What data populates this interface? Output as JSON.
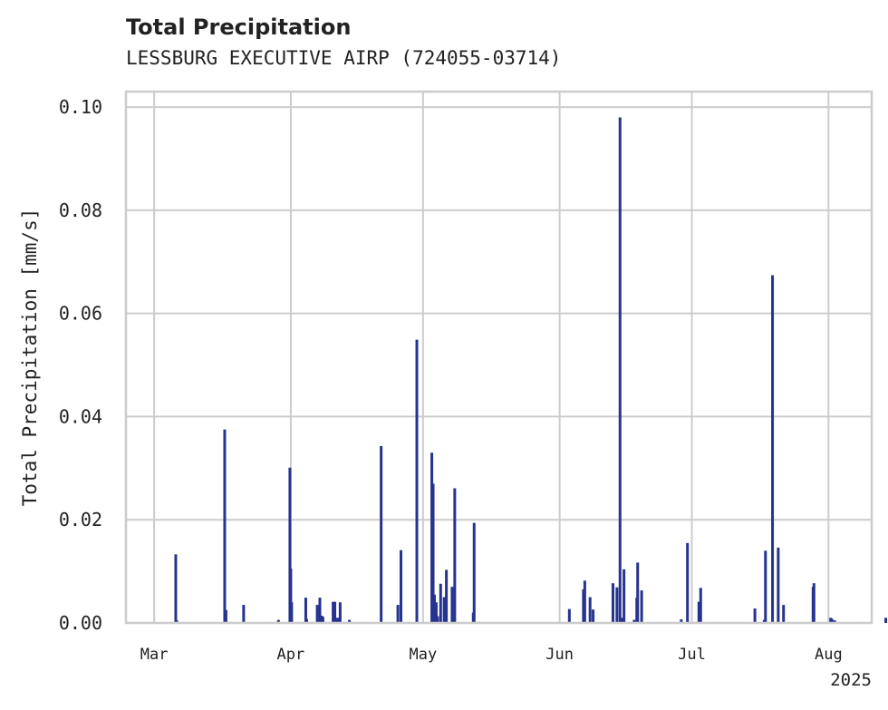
{
  "chart_data": {
    "type": "bar",
    "title": "Total Precipitation",
    "subtitle": "LESSBURG EXECUTIVE AIRP (724055-03714)",
    "xlabel": "",
    "ylabel": "Total Precipitation [mm/s]",
    "xlim": [
      -6.4,
      162.8
    ],
    "ylim": [
      0,
      0.103
    ],
    "yticks": [
      0.0,
      0.02,
      0.04,
      0.06,
      0.08,
      0.1
    ],
    "ytick_labels": [
      "0.00",
      "0.02",
      "0.04",
      "0.06",
      "0.08",
      "0.10"
    ],
    "xticks": [
      {
        "day": 0,
        "label": "Mar"
      },
      {
        "day": 31,
        "label": "Apr"
      },
      {
        "day": 61,
        "label": "May"
      },
      {
        "day": 92,
        "label": "Jun"
      },
      {
        "day": 122,
        "label": "Jul"
      },
      {
        "day": 153,
        "label": "Aug"
      }
    ],
    "year_label": "2025",
    "grid": true,
    "bar_color": "#26338f",
    "x_unit": "days since Mar 1 2025",
    "x": [
      4.9,
      5.1,
      16.0,
      16.3,
      20.3,
      28.2,
      30.8,
      31.0,
      31.2,
      34.4,
      34.6,
      37.0,
      37.6,
      38.0,
      38.3,
      40.6,
      41.0,
      41.5,
      42.0,
      42.2,
      44.3,
      51.5,
      55.3,
      56.0,
      59.6,
      63.0,
      63.3,
      63.6,
      64.0,
      64.3,
      65.0,
      65.8,
      66.3,
      67.6,
      68.2,
      72.4,
      72.6,
      94.2,
      97.4,
      97.7,
      98.9,
      99.6,
      104.1,
      105.0,
      105.7,
      106.2,
      106.6,
      108.9,
      109.5,
      109.7,
      110.6,
      119.6,
      121.0,
      123.6,
      123.8,
      124.0,
      136.3,
      138.4,
      138.7,
      140.3,
      141.6,
      142.8,
      149.5,
      149.7,
      153.5,
      153.8,
      154.4,
      166.0,
      167.0
    ],
    "values": [
      0.0133,
      0.0005,
      0.0375,
      0.0025,
      0.0035,
      0.0006,
      0.0301,
      0.0105,
      0.004,
      0.0049,
      0.0008,
      0.0035,
      0.0049,
      0.0014,
      0.0012,
      0.0041,
      0.0041,
      0.001,
      0.001,
      0.004,
      0.0006,
      0.0343,
      0.0035,
      0.0141,
      0.0549,
      0.033,
      0.027,
      0.0055,
      0.004,
      0.0013,
      0.0076,
      0.005,
      0.0103,
      0.007,
      0.0261,
      0.002,
      0.0194,
      0.0027,
      0.0065,
      0.0082,
      0.005,
      0.0026,
      0.0077,
      0.0069,
      0.098,
      0.001,
      0.0104,
      0.0006,
      0.0049,
      0.0117,
      0.0063,
      0.0007,
      0.0155,
      0.0041,
      0.0028,
      0.0068,
      0.0028,
      0.0006,
      0.014,
      0.0674,
      0.0146,
      0.0035,
      0.007,
      0.0077,
      0.001,
      0.0008,
      0.0005,
      0.001,
      0.001
    ]
  }
}
